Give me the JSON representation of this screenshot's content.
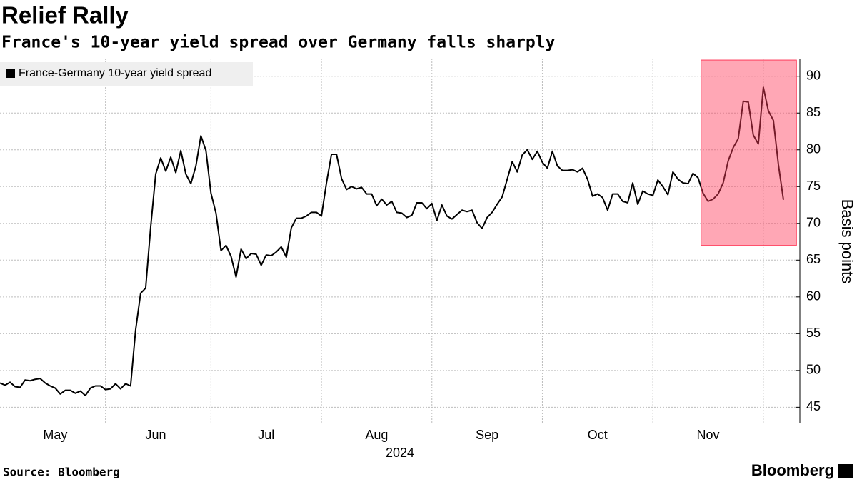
{
  "chart_data": {
    "type": "line",
    "title": "Relief Rally",
    "subtitle": "France's 10-year yield spread over Germany falls sharply",
    "xlabel": "2024",
    "ylabel": "Basis points",
    "source": "Source: Bloomberg",
    "brand": "Bloomberg",
    "categories": [
      null,
      null,
      null,
      null,
      null,
      null,
      null,
      null,
      null,
      null,
      null,
      "May",
      null,
      null,
      null,
      null,
      null,
      null,
      null,
      null,
      null,
      null,
      null,
      null,
      null,
      null,
      null,
      null,
      null,
      null,
      null,
      "Jun",
      null,
      null,
      null,
      null,
      null,
      null,
      null,
      null,
      null,
      null,
      null,
      null,
      null,
      null,
      null,
      null,
      null,
      null,
      null,
      null,
      null,
      "Jul",
      null,
      null,
      null,
      null,
      null,
      null,
      null,
      null,
      null,
      null,
      null,
      null,
      null,
      null,
      null,
      null,
      null,
      null,
      null,
      null,
      null,
      "Aug",
      null,
      null,
      null,
      null,
      null,
      null,
      null,
      null,
      null,
      null,
      null,
      null,
      null,
      null,
      null,
      null,
      null,
      null,
      null,
      null,
      null,
      "Sep",
      null,
      null,
      null,
      null,
      null,
      null,
      null,
      null,
      null,
      null,
      null,
      null,
      null,
      null,
      null,
      null,
      null,
      null,
      null,
      null,
      null,
      "Oct",
      null,
      null,
      null,
      null,
      null,
      null,
      null,
      null,
      null,
      null,
      null,
      null,
      null,
      null,
      null,
      null,
      null,
      null,
      null,
      null,
      null,
      "Nov",
      null,
      null,
      null,
      null,
      null,
      null,
      null,
      null,
      null,
      null,
      null,
      null,
      null,
      null,
      null
    ],
    "series": [
      {
        "name": "France-Germany 10-year yield spread",
        "color": "#000000",
        "values": [
          48.3,
          48.0,
          48.4,
          47.8,
          47.7,
          48.7,
          48.6,
          48.8,
          48.9,
          48.3,
          47.9,
          47.6,
          46.8,
          47.3,
          47.3,
          46.9,
          47.2,
          46.6,
          47.6,
          47.9,
          47.9,
          47.4,
          47.5,
          48.2,
          47.5,
          48.2,
          47.9,
          55.5,
          60.5,
          61.2,
          69.5,
          76.7,
          78.9,
          77.1,
          79.0,
          76.9,
          79.9,
          76.7,
          75.4,
          77.8,
          81.9,
          79.9,
          74.1,
          71.4,
          66.3,
          67.0,
          65.5,
          62.7,
          66.5,
          65.2,
          65.9,
          65.8,
          64.3,
          65.7,
          65.6,
          66.1,
          66.8,
          65.4,
          69.4,
          70.7,
          70.7,
          71.0,
          71.5,
          71.5,
          71.0,
          75.5,
          79.4,
          79.4,
          76.1,
          74.6,
          75.0,
          74.7,
          74.9,
          74.0,
          74.0,
          72.4,
          73.3,
          72.5,
          73.0,
          71.5,
          71.4,
          70.8,
          71.1,
          72.8,
          72.8,
          72.0,
          72.7,
          70.4,
          72.5,
          71.0,
          70.6,
          71.2,
          71.8,
          71.6,
          71.8,
          70.1,
          69.3,
          70.8,
          71.5,
          72.6,
          73.6,
          76.0,
          78.4,
          77.0,
          79.3,
          80.0,
          78.7,
          79.8,
          78.3,
          77.5,
          79.8,
          77.8,
          77.2,
          77.2,
          77.3,
          77.0,
          77.5,
          76.0,
          73.7,
          74.0,
          73.5,
          71.8,
          74.0,
          74.0,
          73.0,
          72.8,
          75.5,
          72.6,
          74.4,
          74.0,
          73.8,
          75.9,
          75.0,
          73.9,
          77.0,
          76.0,
          75.5,
          75.4,
          76.8,
          76.2,
          74.1,
          73.0,
          73.3,
          74.0,
          75.5,
          78.5,
          80.3,
          81.5,
          86.6,
          86.5,
          82.0,
          80.8,
          88.5,
          85.3,
          84.0,
          78.0,
          73.2
        ]
      }
    ],
    "ylim": [
      42.9,
      92.4
    ],
    "yticks": [
      45,
      50,
      55,
      60,
      65,
      70,
      75,
      80,
      85,
      90
    ],
    "grid": true,
    "legend": "top-left",
    "highlight": {
      "x": [
        139.6,
        158.6
      ],
      "y": [
        67,
        92.2
      ],
      "color": "#ff3c5a"
    }
  }
}
